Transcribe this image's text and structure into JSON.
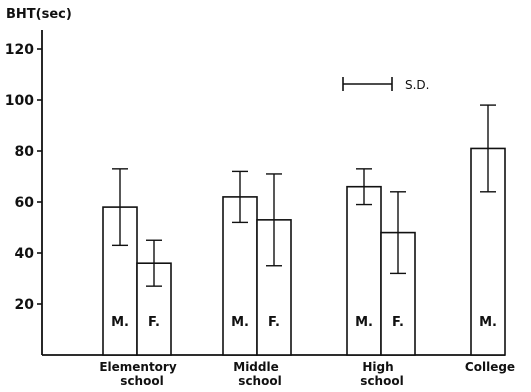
{
  "chart_data": {
    "type": "bar",
    "ylabel": "BHT(sec)",
    "ylim": [
      0,
      130
    ],
    "yticks": [
      "20",
      "40",
      "60",
      "80",
      "100",
      "120"
    ],
    "legend_label": "S.D.",
    "categories": [
      {
        "name_line1": "Elementory",
        "name_line2": "school"
      },
      {
        "name_line1": "Middle",
        "name_line2": "school"
      },
      {
        "name_line1": "High",
        "name_line2": "school"
      },
      {
        "name_line1": "College",
        "name_line2": ""
      }
    ],
    "bars": [
      {
        "group": 0,
        "label": "M.",
        "value": 58,
        "sd": 15
      },
      {
        "group": 0,
        "label": "F.",
        "value": 36,
        "sd": 9
      },
      {
        "group": 1,
        "label": "M.",
        "value": 62,
        "sd": 10
      },
      {
        "group": 1,
        "label": "F.",
        "value": 53,
        "sd": 18
      },
      {
        "group": 2,
        "label": "M.",
        "value": 66,
        "sd": 7
      },
      {
        "group": 2,
        "label": "F.",
        "value": 48,
        "sd": 16
      },
      {
        "group": 3,
        "label": "M.",
        "value": 81,
        "sd": 17
      }
    ]
  }
}
